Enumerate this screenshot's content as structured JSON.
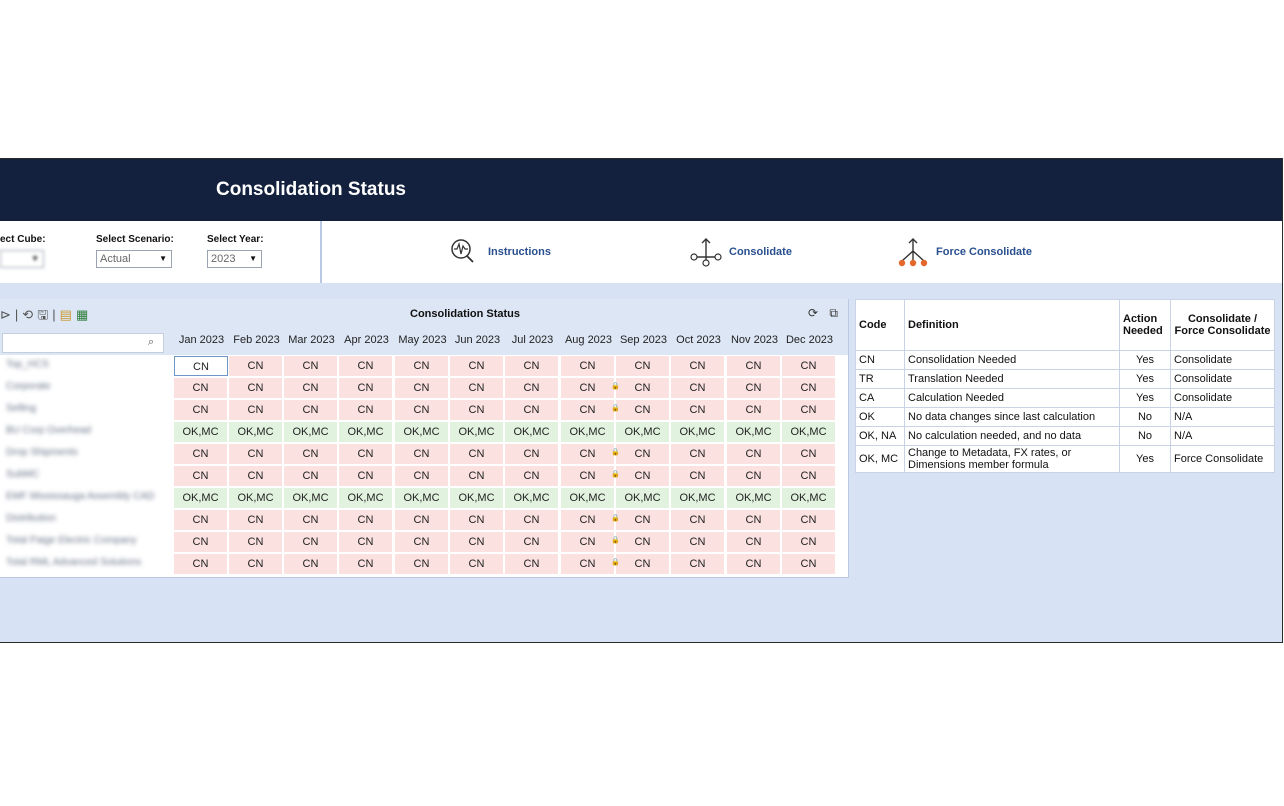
{
  "header": {
    "title": "Consolidation Status"
  },
  "selectors": {
    "cube_label": "ect Cube:",
    "cube_value": "",
    "scenario_label": "Select Scenario:",
    "scenario_value": "Actual",
    "year_label": "Select Year:",
    "year_value": "2023"
  },
  "actions": {
    "instructions": "Instructions",
    "consolidate": "Consolidate",
    "force_consolidate": "Force Consolidate"
  },
  "grid": {
    "title": "Consolidation Status",
    "months": [
      "Jan 2023",
      "Feb 2023",
      "Mar 2023",
      "Apr 2023",
      "May 2023",
      "Jun 2023",
      "Jul 2023",
      "Aug 2023",
      "Sep 2023",
      "Oct 2023",
      "Nov 2023",
      "Dec 2023"
    ],
    "rows": [
      {
        "label": "Top_HCS",
        "status": "CN",
        "locked": false
      },
      {
        "label": "Corporate",
        "status": "CN",
        "locked": true
      },
      {
        "label": "Selling",
        "status": "CN",
        "locked": true
      },
      {
        "label": "BU Corp Overhead",
        "status": "OK,MC",
        "locked": false
      },
      {
        "label": "Drop Shipments",
        "status": "CN",
        "locked": true
      },
      {
        "label": "SubMC",
        "status": "CN",
        "locked": true
      },
      {
        "label": "EMF Mississauga Assembly CAD",
        "status": "OK,MC",
        "locked": false
      },
      {
        "label": "Distribution",
        "status": "CN",
        "locked": true
      },
      {
        "label": "Total Paige Electric Company",
        "status": "CN",
        "locked": true
      },
      {
        "label": "Total RML Advanced Solutions",
        "status": "CN",
        "locked": true
      }
    ]
  },
  "legend": {
    "headers": {
      "code": "Code",
      "definition": "Definition",
      "action": "Action Needed",
      "consolidate": "Consolidate / Force Consolidate"
    },
    "rows": [
      {
        "code": "CN",
        "definition": "Consolidation Needed",
        "action": "Yes",
        "consolidate": "Consolidate"
      },
      {
        "code": "TR",
        "definition": "Translation Needed",
        "action": "Yes",
        "consolidate": "Consolidate"
      },
      {
        "code": "CA",
        "definition": "Calculation Needed",
        "action": "Yes",
        "consolidate": "Consolidate"
      },
      {
        "code": "OK",
        "definition": "No data changes since last calculation",
        "action": "No",
        "consolidate": "N/A"
      },
      {
        "code": "OK, NA",
        "definition": "No calculation needed, and no data",
        "action": "No",
        "consolidate": "N/A"
      },
      {
        "code": "OK, MC",
        "definition": "Change to Metadata, FX rates, or Dimensions member formula",
        "action": "Yes",
        "consolidate": "Force Consolidate"
      }
    ]
  },
  "colors": {
    "header_bg": "#13213f",
    "cn_cell": "#fbe1df",
    "ok_cell": "#e1f3df",
    "link": "#2a4f8f"
  }
}
